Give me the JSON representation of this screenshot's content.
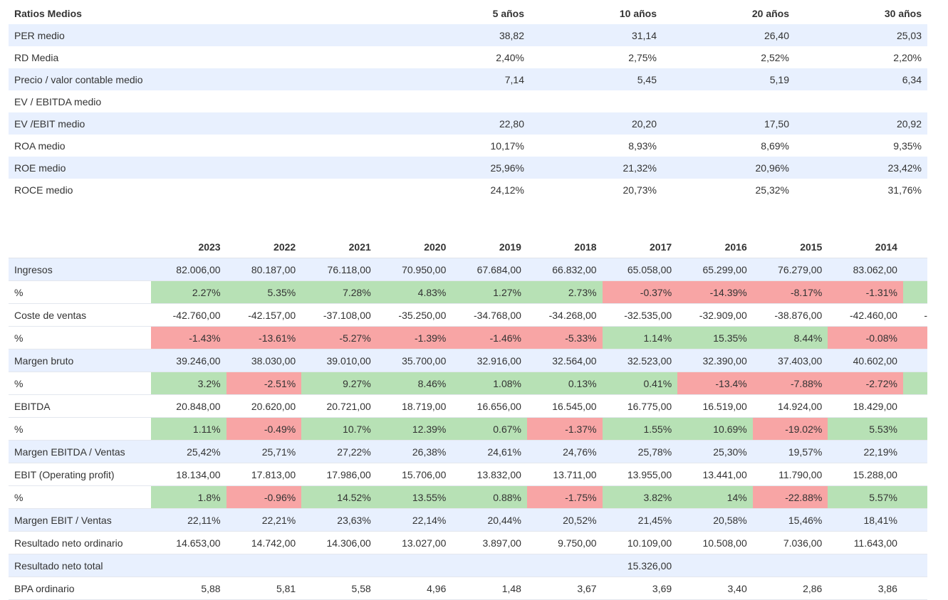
{
  "ratios": {
    "header": {
      "label": "Ratios Medios",
      "cols": [
        "5 años",
        "10 años",
        "20 años",
        "30 años"
      ]
    },
    "rows": [
      {
        "label": "PER medio",
        "values": [
          "38,82",
          "31,14",
          "26,40",
          "25,03"
        ]
      },
      {
        "label": "RD Media",
        "values": [
          "2,40%",
          "2,75%",
          "2,52%",
          "2,20%"
        ]
      },
      {
        "label": "Precio / valor contable medio",
        "values": [
          "7,14",
          "5,45",
          "5,19",
          "6,34"
        ]
      },
      {
        "label": "EV / EBITDA medio",
        "values": [
          "",
          "",
          "",
          ""
        ]
      },
      {
        "label": "EV /EBIT medio",
        "values": [
          "22,80",
          "20,20",
          "17,50",
          "20,92"
        ]
      },
      {
        "label": "ROA medio",
        "values": [
          "10,17%",
          "8,93%",
          "8,69%",
          "9,35%"
        ]
      },
      {
        "label": "ROE medio",
        "values": [
          "25,96%",
          "21,32%",
          "20,96%",
          "23,42%"
        ]
      },
      {
        "label": "ROCE medio",
        "values": [
          "24,12%",
          "20,73%",
          "25,32%",
          "31,76%"
        ]
      }
    ]
  },
  "financials": {
    "years": [
      "2023",
      "2022",
      "2021",
      "2020",
      "2019",
      "2018",
      "2017",
      "2016",
      "2015",
      "2014"
    ],
    "rows": [
      {
        "label": "Ingresos",
        "type": "value",
        "bg": "blue",
        "values": [
          "82.006,00",
          "80.187,00",
          "76.118,00",
          "70.950,00",
          "67.684,00",
          "66.832,00",
          "65.058,00",
          "65.299,00",
          "76.279,00",
          "83.062,00"
        ],
        "tail": "",
        "tail_color": "blue"
      },
      {
        "label": "%",
        "type": "pct",
        "bg": "white",
        "values": [
          "2.27%",
          "5.35%",
          "7.28%",
          "4.83%",
          "1.27%",
          "2.73%",
          "-0.37%",
          "-14.39%",
          "-8.17%",
          "-1.31%"
        ],
        "colors": [
          "green",
          "green",
          "green",
          "green",
          "green",
          "green",
          "red",
          "red",
          "red",
          "red"
        ],
        "tail": "",
        "tail_color": "green"
      },
      {
        "label": "Coste de ventas",
        "type": "value",
        "bg": "white",
        "values": [
          "-42.760,00",
          "-42.157,00",
          "-37.108,00",
          "-35.250,00",
          "-34.768,00",
          "-34.268,00",
          "-32.535,00",
          "-32.909,00",
          "-38.876,00",
          "-42.460,00"
        ],
        "tail": "-",
        "tail_color": "white"
      },
      {
        "label": "%",
        "type": "pct",
        "bg": "white",
        "values": [
          "-1.43%",
          "-13.61%",
          "-5.27%",
          "-1.39%",
          "-1.46%",
          "-5.33%",
          "1.14%",
          "15.35%",
          "8.44%",
          "-0.08%"
        ],
        "colors": [
          "red",
          "red",
          "red",
          "red",
          "red",
          "red",
          "green",
          "green",
          "green",
          "red"
        ],
        "tail": "",
        "tail_color": "red"
      },
      {
        "label": "Margen bruto",
        "type": "value",
        "bg": "blue",
        "values": [
          "39.246,00",
          "38.030,00",
          "39.010,00",
          "35.700,00",
          "32.916,00",
          "32.564,00",
          "32.523,00",
          "32.390,00",
          "37.403,00",
          "40.602,00"
        ],
        "tail": "",
        "tail_color": "blue"
      },
      {
        "label": "%",
        "type": "pct",
        "bg": "white",
        "values": [
          "3.2%",
          "-2.51%",
          "9.27%",
          "8.46%",
          "1.08%",
          "0.13%",
          "0.41%",
          "-13.4%",
          "-7.88%",
          "-2.72%"
        ],
        "colors": [
          "green",
          "red",
          "green",
          "green",
          "green",
          "green",
          "green",
          "red",
          "red",
          "red"
        ],
        "tail": "",
        "tail_color": "green"
      },
      {
        "label": "EBITDA",
        "type": "value",
        "bg": "white",
        "values": [
          "20.848,00",
          "20.620,00",
          "20.721,00",
          "18.719,00",
          "16.656,00",
          "16.545,00",
          "16.775,00",
          "16.519,00",
          "14.924,00",
          "18.429,00"
        ],
        "tail": "",
        "tail_color": "white"
      },
      {
        "label": "%",
        "type": "pct",
        "bg": "white",
        "values": [
          "1.11%",
          "-0.49%",
          "10.7%",
          "12.39%",
          "0.67%",
          "-1.37%",
          "1.55%",
          "10.69%",
          "-19.02%",
          "5.53%"
        ],
        "colors": [
          "green",
          "red",
          "green",
          "green",
          "green",
          "red",
          "green",
          "green",
          "red",
          "green"
        ],
        "tail": "",
        "tail_color": "green"
      },
      {
        "label": "Margen EBITDA / Ventas",
        "type": "value",
        "bg": "blue",
        "values": [
          "25,42%",
          "25,71%",
          "27,22%",
          "26,38%",
          "24,61%",
          "24,76%",
          "25,78%",
          "25,30%",
          "19,57%",
          "22,19%"
        ],
        "tail": "",
        "tail_color": "blue"
      },
      {
        "label": "EBIT (Operating profit)",
        "type": "value",
        "bg": "white",
        "values": [
          "18.134,00",
          "17.813,00",
          "17.986,00",
          "15.706,00",
          "13.832,00",
          "13.711,00",
          "13.955,00",
          "13.441,00",
          "11.790,00",
          "15.288,00"
        ],
        "tail": "",
        "tail_color": "white"
      },
      {
        "label": "%",
        "type": "pct",
        "bg": "white",
        "values": [
          "1.8%",
          "-0.96%",
          "14.52%",
          "13.55%",
          "0.88%",
          "-1.75%",
          "3.82%",
          "14%",
          "-22.88%",
          "5.57%"
        ],
        "colors": [
          "green",
          "red",
          "green",
          "green",
          "green",
          "red",
          "green",
          "green",
          "red",
          "green"
        ],
        "tail": "",
        "tail_color": "green"
      },
      {
        "label": "Margen EBIT / Ventas",
        "type": "value",
        "bg": "blue",
        "values": [
          "22,11%",
          "22,21%",
          "23,63%",
          "22,14%",
          "20,44%",
          "20,52%",
          "21,45%",
          "20,58%",
          "15,46%",
          "18,41%"
        ],
        "tail": "",
        "tail_color": "blue"
      },
      {
        "label": "Resultado neto ordinario",
        "type": "value",
        "bg": "white",
        "values": [
          "14.653,00",
          "14.742,00",
          "14.306,00",
          "13.027,00",
          "3.897,00",
          "9.750,00",
          "10.109,00",
          "10.508,00",
          "7.036,00",
          "11.643,00"
        ],
        "tail": "",
        "tail_color": "white"
      },
      {
        "label": "Resultado neto total",
        "type": "value",
        "bg": "blue",
        "values": [
          "",
          "",
          "",
          "",
          "",
          "",
          "15.326,00",
          "",
          "",
          ""
        ],
        "tail": "",
        "tail_color": "blue"
      },
      {
        "label": "BPA ordinario",
        "type": "value",
        "bg": "white",
        "values": [
          "5,88",
          "5,81",
          "5,58",
          "4,96",
          "1,48",
          "3,67",
          "3,69",
          "3,40",
          "2,86",
          "3,86"
        ],
        "tail": "",
        "tail_color": "white"
      }
    ]
  }
}
